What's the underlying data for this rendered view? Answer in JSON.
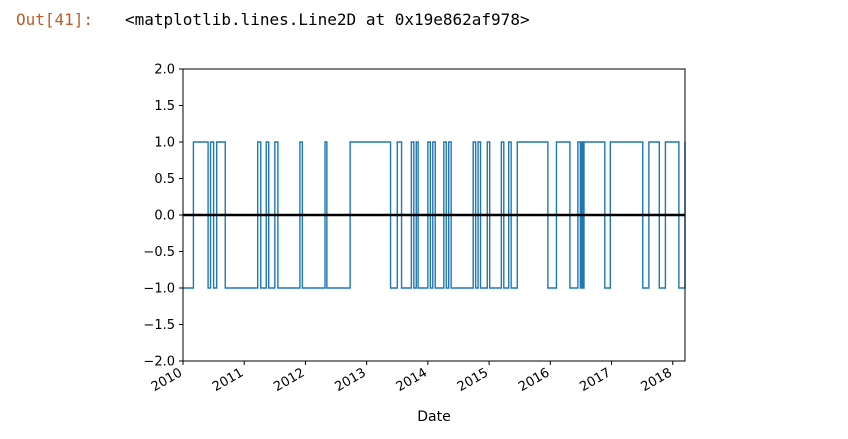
{
  "output": {
    "prompt": "Out[41]:",
    "text": "<matplotlib.lines.Line2D at 0x19e862af978>"
  },
  "chart_data": {
    "type": "line",
    "title": "",
    "xlabel": "Date",
    "ylabel": "",
    "xlim": [
      2010.0,
      2018.2
    ],
    "ylim": [
      -2.0,
      2.0
    ],
    "xticks": [
      "2010",
      "2011",
      "2012",
      "2013",
      "2014",
      "2015",
      "2016",
      "2017",
      "2018"
    ],
    "yticks": [
      "2.0",
      "1.5",
      "1.0",
      "0.5",
      "0.0",
      "−0.5",
      "−1.0",
      "−1.5",
      "−2.0"
    ],
    "grid": false,
    "series": [
      {
        "style": "step",
        "color": "#1f77b4",
        "x": [
          2010.0,
          2010.17,
          2010.41,
          2010.45,
          2010.5,
          2010.55,
          2010.69,
          2011.22,
          2011.27,
          2011.36,
          2011.4,
          2011.5,
          2011.55,
          2011.91,
          2011.95,
          2012.32,
          2012.35,
          2012.73,
          2013.39,
          2013.5,
          2013.57,
          2013.73,
          2013.77,
          2013.81,
          2013.84,
          2014.0,
          2014.04,
          2014.08,
          2014.12,
          2014.26,
          2014.3,
          2014.34,
          2014.38,
          2014.74,
          2014.78,
          2014.82,
          2014.86,
          2014.97,
          2015.01,
          2015.2,
          2015.24,
          2015.32,
          2015.36,
          2015.46,
          2015.96,
          2016.1,
          2016.32,
          2016.45,
          2016.49,
          2016.51,
          2016.53,
          2016.55,
          2016.89,
          2016.98,
          2017.51,
          2017.61,
          2017.78,
          2017.88,
          2018.1,
          2018.2
        ],
        "y": [
          -1,
          1,
          -1,
          1,
          -1,
          1,
          -1,
          1,
          -1,
          1,
          -1,
          1,
          -1,
          1,
          -1,
          1,
          -1,
          1,
          -1,
          1,
          -1,
          1,
          -1,
          1,
          -1,
          1,
          -1,
          1,
          -1,
          1,
          -1,
          1,
          -1,
          1,
          -1,
          1,
          -1,
          1,
          -1,
          1,
          -1,
          1,
          -1,
          1,
          -1,
          1,
          -1,
          1,
          -1,
          1,
          -1,
          1,
          -1,
          1,
          -1,
          1,
          -1,
          1,
          -1,
          1
        ]
      },
      {
        "style": "line",
        "color": "#000000",
        "x": [
          2010.0,
          2018.2
        ],
        "y": [
          0,
          0
        ]
      }
    ]
  }
}
